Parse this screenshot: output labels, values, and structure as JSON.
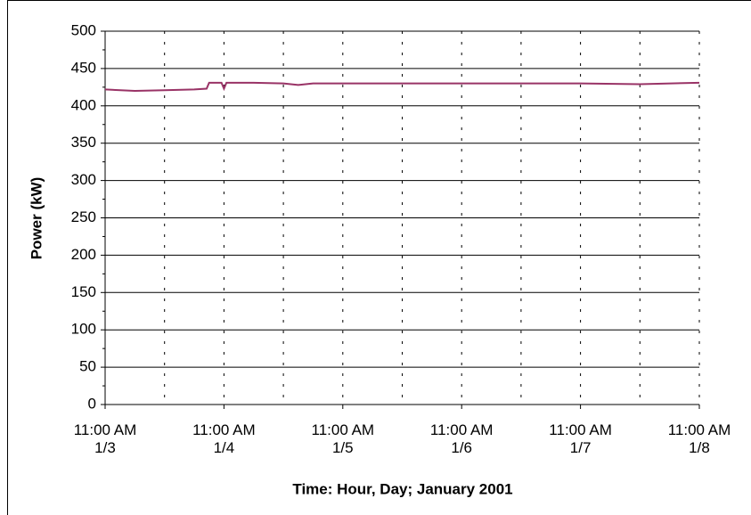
{
  "chart_data": {
    "type": "line",
    "x_title": "Time:  Hour, Day; January 2001",
    "y_title": "Power (kW)",
    "ylim": [
      0,
      500
    ],
    "yticks": [
      0,
      50,
      100,
      150,
      200,
      250,
      300,
      350,
      400,
      450,
      500
    ],
    "xlim": [
      "2001-01-03T11:00",
      "2001-01-08T11:00"
    ],
    "xticks": [
      {
        "value": "2001-01-03T11:00",
        "label": "11:00 AM\n1/3"
      },
      {
        "value": "2001-01-04T11:00",
        "label": "11:00 AM\n1/4"
      },
      {
        "value": "2001-01-05T11:00",
        "label": "11:00 AM\n1/5"
      },
      {
        "value": "2001-01-06T11:00",
        "label": "11:00 AM\n1/6"
      },
      {
        "value": "2001-01-07T11:00",
        "label": "11:00 AM\n1/7"
      },
      {
        "value": "2001-01-08T11:00",
        "label": "11:00 AM\n1/8"
      }
    ],
    "grid": true,
    "series": [
      {
        "color": "#993366",
        "x": [
          "2001-01-03T11:00",
          "2001-01-03T17:00",
          "2001-01-03T23:00",
          "2001-01-04T05:00",
          "2001-01-04T07:30",
          "2001-01-04T08:00",
          "2001-01-04T10:30",
          "2001-01-04T11:00",
          "2001-01-04T11:30",
          "2001-01-04T17:00",
          "2001-01-04T23:00",
          "2001-01-05T02:00",
          "2001-01-05T05:00",
          "2001-01-05T11:00",
          "2001-01-05T23:00",
          "2001-01-06T11:00",
          "2001-01-06T23:00",
          "2001-01-07T11:00",
          "2001-01-07T23:00",
          "2001-01-08T11:00"
        ],
        "values": [
          422,
          420,
          421,
          422,
          423,
          431,
          431,
          423,
          431,
          431,
          430,
          428,
          430,
          430,
          430,
          430,
          430,
          430,
          429,
          431
        ]
      }
    ]
  }
}
